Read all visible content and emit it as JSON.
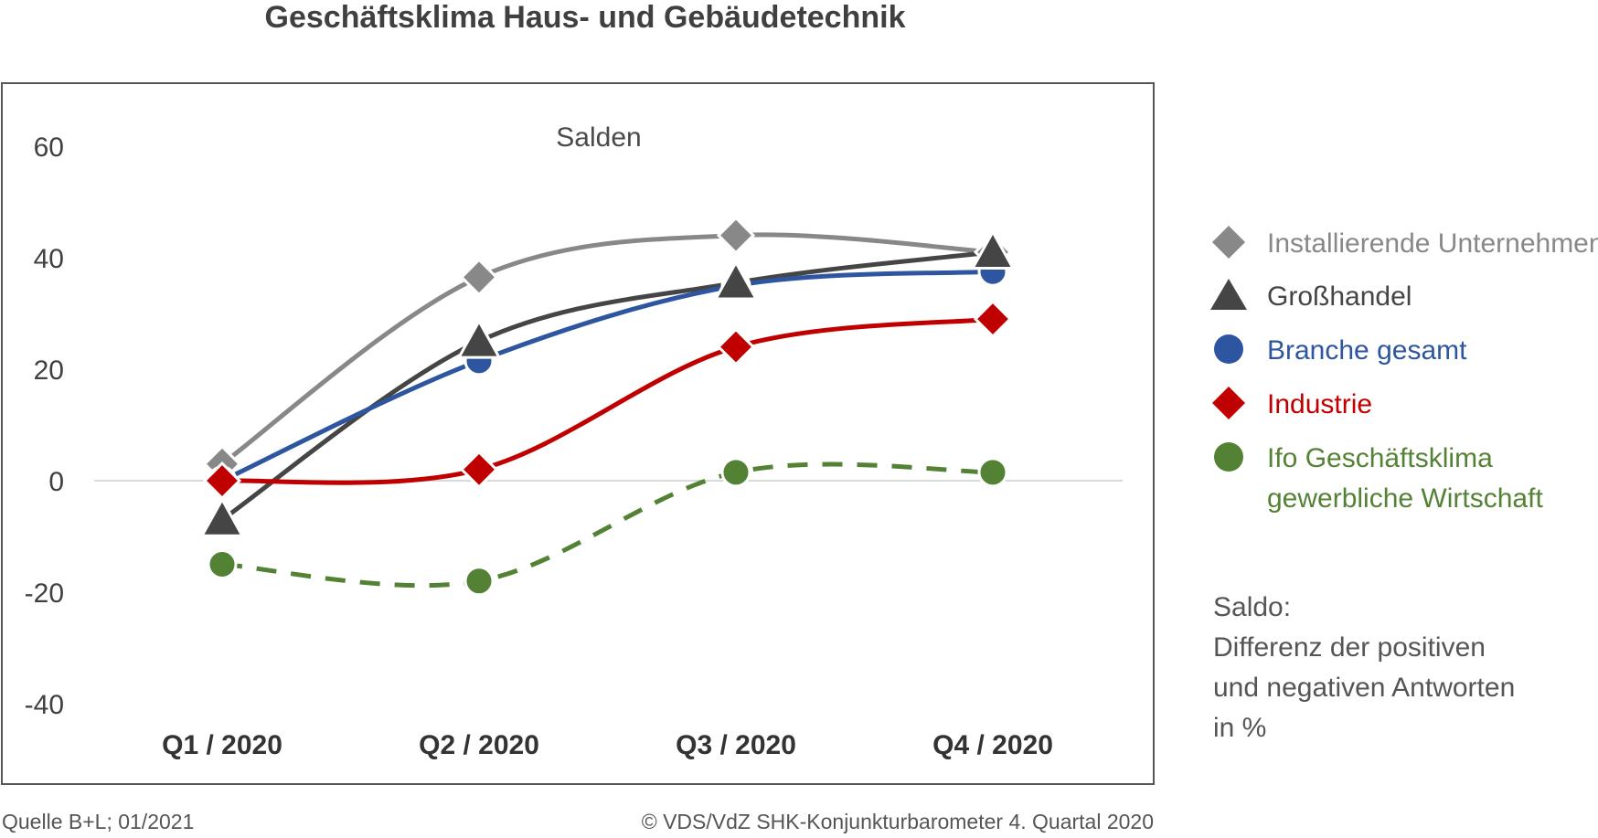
{
  "header": {
    "title": "Geschäftsklima Haus- und Gebäudetechnik"
  },
  "chart_data": {
    "type": "line",
    "title": "Geschäftsklima Haus- und Gebäudetechnik",
    "subtitle": "Salden",
    "categories": [
      "Q1 / 2020",
      "Q2 / 2020",
      "Q3 / 2020",
      "Q4 / 2020"
    ],
    "y_ticks": [
      "60",
      "40",
      "20",
      "0",
      "-20",
      "-40"
    ],
    "ylim": [
      -40,
      60
    ],
    "grid": false,
    "zero_line": true,
    "legend_position": "right",
    "series": [
      {
        "name": "Installierende Unternehmen",
        "values": [
          3,
          36.5,
          44,
          41
        ],
        "color": "#888888",
        "marker": "diamond",
        "dashed": false
      },
      {
        "name": "Großhandel",
        "values": [
          -7,
          25,
          35.5,
          41
        ],
        "color": "#454545",
        "marker": "triangle",
        "dashed": false
      },
      {
        "name": "Branche gesamt",
        "values": [
          0,
          21.5,
          35,
          37.5
        ],
        "color": "#2e56a0",
        "marker": "circle",
        "dashed": false
      },
      {
        "name": "Industrie",
        "values": [
          0,
          2,
          24,
          29
        ],
        "color": "#c00000",
        "marker": "diamond",
        "dashed": false
      },
      {
        "name": "Ifo Geschäftsklima gewerbliche Wirtschaft",
        "name_lines": [
          "Ifo Geschäftsklima",
          "gewerbliche Wirtschaft"
        ],
        "values": [
          -15,
          -18,
          1.5,
          1.5
        ],
        "color": "#548235",
        "marker": "circle",
        "dashed": true
      }
    ]
  },
  "note": {
    "lines": [
      "Saldo:",
      "Differenz der positiven",
      "und negativen Antworten",
      "in %"
    ]
  },
  "footer": {
    "source": "Quelle B+L; 01/2021",
    "copyright": "© VDS/VdZ SHK-Konjunkturbarometer 4. Quartal 2020"
  }
}
